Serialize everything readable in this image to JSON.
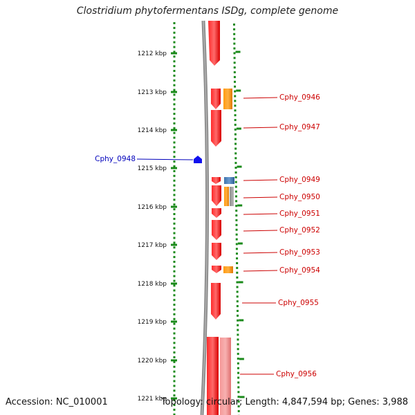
{
  "header": {
    "title": "Clostridium phytofermentans ISDg, complete genome"
  },
  "footer": {
    "accession": "Accession: NC_010001",
    "topology": "Topology: circular; Length: 4,847,594 bp; Genes: 3,988"
  },
  "colors": {
    "scale": "#1a8a1a",
    "cds_red": "#ee1111",
    "cds_light_red": "#f08080",
    "orange": "#f08c00",
    "steelblue": "#4a7fb5",
    "gray": "#9a9a9a",
    "label_red": "#cc0000",
    "label_blue": "#0000bb",
    "backbone": "#8a8a8a"
  },
  "scale_labels": [
    "1212 kbp",
    "1213 kbp",
    "1214 kbp",
    "1215 kbp",
    "1216 kbp",
    "1217 kbp",
    "1218 kbp",
    "1219 kbp",
    "1220 kbp",
    "1221 kbp"
  ],
  "gene_labels": [
    {
      "text": "Cphy_0946",
      "side": "right"
    },
    {
      "text": "Cphy_0947",
      "side": "right"
    },
    {
      "text": "Cphy_0948",
      "side": "left"
    },
    {
      "text": "Cphy_0949",
      "side": "right"
    },
    {
      "text": "Cphy_0950",
      "side": "right"
    },
    {
      "text": "Cphy_0951",
      "side": "right"
    },
    {
      "text": "Cphy_0952",
      "side": "right"
    },
    {
      "text": "Cphy_0953",
      "side": "right"
    },
    {
      "text": "Cphy_0954",
      "side": "right"
    },
    {
      "text": "Cphy_0955",
      "side": "right"
    },
    {
      "text": "Cphy_0956",
      "side": "right"
    }
  ]
}
